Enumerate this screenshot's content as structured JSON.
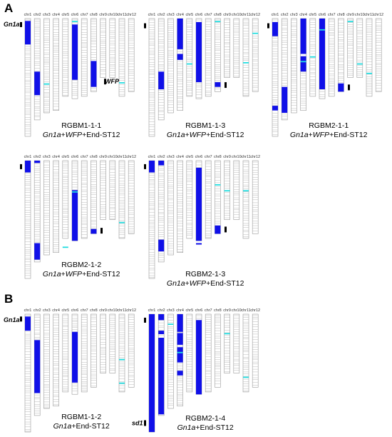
{
  "panels": [
    {
      "letter": "A"
    },
    {
      "letter": "B"
    }
  ],
  "chromosome_labels": [
    "chr1",
    "chr2",
    "chr3",
    "chr4",
    "chr5",
    "chr6",
    "chr7",
    "chr8",
    "chr9",
    "chr10",
    "chr11",
    "chr12"
  ],
  "colors": {
    "introgression": "#1010e8",
    "marker_cyan": "#22dde0",
    "marker_gray": "#b8b8b8",
    "outline": "#999999"
  },
  "lines": [
    {
      "name": "RGBM1-1-1",
      "sub_prefix": "Gn1a",
      "sub_mid": "+",
      "sub_wfp": "WFP",
      "sub_suffix": "+End-ST12",
      "gene_labels": [
        "Gn1a",
        "WFP"
      ]
    },
    {
      "name": "RGBM1-1-3",
      "sub_prefix": "Gn1a",
      "sub_mid": "+",
      "sub_wfp": "WFP",
      "sub_suffix": "+End-ST12",
      "gene_labels": []
    },
    {
      "name": "RGBM2-1-1",
      "sub_prefix": "Gn1a",
      "sub_mid": "+",
      "sub_wfp": "WFP",
      "sub_suffix": "+End-ST12",
      "gene_labels": []
    },
    {
      "name": "RGBM2-1-2",
      "sub_prefix": "Gn1a",
      "sub_mid": "+",
      "sub_wfp": "WFP",
      "sub_suffix": "+End-ST12",
      "gene_labels": []
    },
    {
      "name": "RGBM2-1-3",
      "sub_prefix": "Gn1a",
      "sub_mid": "+",
      "sub_wfp": "WFP",
      "sub_suffix": "+End-ST12",
      "gene_labels": []
    },
    {
      "name": "RGBM1-1-2",
      "sub_prefix": "Gn1a",
      "sub_mid": "",
      "sub_wfp": "",
      "sub_suffix": "+End-ST12",
      "gene_labels": [
        "Gn1a"
      ]
    },
    {
      "name": "RGBM2-1-4",
      "sub_prefix": "Gn1a",
      "sub_mid": "",
      "sub_wfp": "",
      "sub_suffix": "+End-ST12",
      "gene_labels": [
        "sd1"
      ]
    }
  ]
}
